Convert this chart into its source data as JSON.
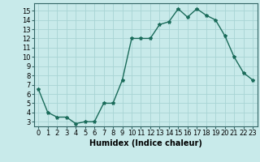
{
  "x": [
    0,
    1,
    2,
    3,
    4,
    5,
    6,
    7,
    8,
    9,
    10,
    11,
    12,
    13,
    14,
    15,
    16,
    17,
    18,
    19,
    20,
    21,
    22,
    23
  ],
  "y": [
    6.5,
    4.0,
    3.5,
    3.5,
    2.8,
    3.0,
    3.0,
    5.0,
    5.0,
    7.5,
    12.0,
    12.0,
    12.0,
    13.5,
    13.8,
    15.2,
    14.3,
    15.2,
    14.5,
    14.0,
    12.3,
    10.0,
    8.3,
    7.5
  ],
  "xlabel": "Humidex (Indice chaleur)",
  "ylabel": "",
  "xlim": [
    -0.5,
    23.5
  ],
  "ylim": [
    2.5,
    15.8
  ],
  "yticks": [
    3,
    4,
    5,
    6,
    7,
    8,
    9,
    10,
    11,
    12,
    13,
    14,
    15
  ],
  "xticks": [
    0,
    1,
    2,
    3,
    4,
    5,
    6,
    7,
    8,
    9,
    10,
    11,
    12,
    13,
    14,
    15,
    16,
    17,
    18,
    19,
    20,
    21,
    22,
    23
  ],
  "line_color": "#1a6b5a",
  "marker": "*",
  "marker_size": 3,
  "bg_color": "#c8eaea",
  "grid_color": "#a8d4d4",
  "tick_fontsize": 6,
  "label_fontsize": 7
}
